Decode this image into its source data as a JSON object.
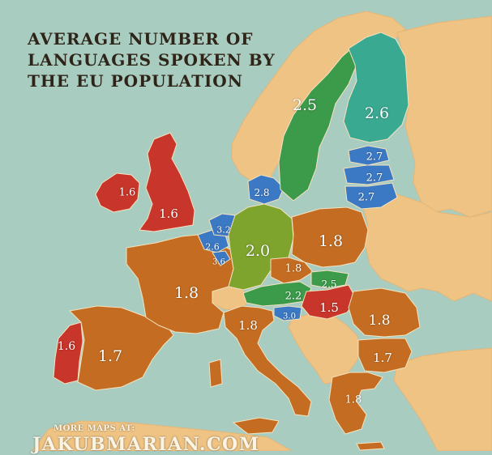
{
  "title_lines": [
    "AVERAGE NUMBER OF",
    "LANGUAGES SPOKEN BY",
    "THE EU POPULATION"
  ],
  "credit": {
    "line1": "MORE MAPS AT:",
    "line2": "JAKUBMARIAN.COM"
  },
  "colors": {
    "sea": "#a9ccc0",
    "land": "#efc383",
    "red": "#c8352a",
    "orange": "#c46d22",
    "olive": "#7ea42d",
    "green": "#3c9a4b",
    "teal": "#3aa992",
    "blue": "#3c79c4"
  },
  "countries": [
    {
      "id": "ireland",
      "value": "1.6",
      "color": "red"
    },
    {
      "id": "united-kingdom",
      "value": "1.6",
      "color": "red"
    },
    {
      "id": "portugal",
      "value": "1.6",
      "color": "red"
    },
    {
      "id": "spain",
      "value": "1.7",
      "color": "orange"
    },
    {
      "id": "france",
      "value": "1.8",
      "color": "orange"
    },
    {
      "id": "belgium",
      "value": "2.6",
      "color": "blue"
    },
    {
      "id": "netherlands",
      "value": "3.2",
      "color": "blue"
    },
    {
      "id": "luxembourg",
      "value": "3.6",
      "color": "blue"
    },
    {
      "id": "germany",
      "value": "2.0",
      "color": "olive"
    },
    {
      "id": "denmark",
      "value": "2.8",
      "color": "blue"
    },
    {
      "id": "sweden",
      "value": "2.5",
      "color": "green"
    },
    {
      "id": "finland",
      "value": "2.6",
      "color": "teal"
    },
    {
      "id": "estonia",
      "value": "2.7",
      "color": "blue"
    },
    {
      "id": "latvia",
      "value": "2.7",
      "color": "blue"
    },
    {
      "id": "lithuania",
      "value": "2.7",
      "color": "blue"
    },
    {
      "id": "poland",
      "value": "1.8",
      "color": "orange"
    },
    {
      "id": "czechia",
      "value": "1.8",
      "color": "orange"
    },
    {
      "id": "slovakia",
      "value": "2.5",
      "color": "green"
    },
    {
      "id": "austria",
      "value": "2.2",
      "color": "green"
    },
    {
      "id": "hungary",
      "value": "1.5",
      "color": "red"
    },
    {
      "id": "slovenia",
      "value": "3.0",
      "color": "blue"
    },
    {
      "id": "italy",
      "value": "1.8",
      "color": "orange"
    },
    {
      "id": "romania",
      "value": "1.8",
      "color": "orange"
    },
    {
      "id": "bulgaria",
      "value": "1.7",
      "color": "orange"
    },
    {
      "id": "greece",
      "value": "1.8",
      "color": "orange"
    }
  ]
}
